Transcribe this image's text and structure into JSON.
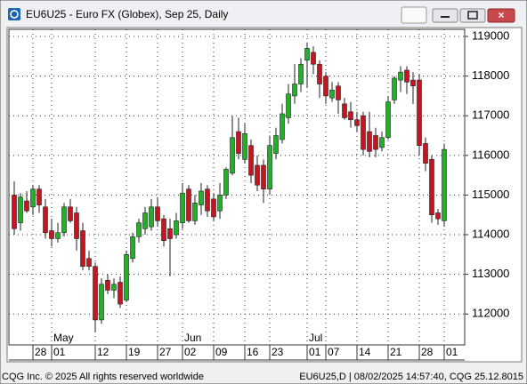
{
  "chart_data": {
    "type": "candlestick",
    "window_title": "EU6U25 - Euro FX (Globex), Sep 25, Daily",
    "footer_left": "CQG Inc. © 2025 All rights reserved worldwide",
    "footer_right": "EU6U25,D | 08/02/2025 14:57:40, CQG 25.12.8015",
    "categories": [
      null,
      null,
      null,
      "28",
      null,
      null,
      "01",
      null,
      null,
      null,
      null,
      null,
      null,
      "12",
      null,
      null,
      null,
      null,
      "19",
      null,
      null,
      null,
      null,
      "27",
      null,
      null,
      null,
      "02",
      null,
      null,
      null,
      null,
      "09",
      null,
      null,
      null,
      null,
      "16",
      null,
      null,
      null,
      "23",
      null,
      null,
      null,
      null,
      null,
      "01",
      null,
      null,
      "07",
      null,
      null,
      null,
      null,
      "14",
      null,
      null,
      null,
      null,
      "21",
      null,
      null,
      null,
      null,
      "28",
      null,
      null,
      null,
      "01"
    ],
    "months": [
      null,
      null,
      null,
      null,
      null,
      null,
      "May",
      null,
      null,
      null,
      null,
      null,
      null,
      null,
      null,
      null,
      null,
      null,
      null,
      null,
      null,
      null,
      null,
      null,
      null,
      null,
      null,
      "Jun",
      null,
      null,
      null,
      null,
      null,
      null,
      null,
      null,
      null,
      null,
      null,
      null,
      null,
      null,
      null,
      null,
      null,
      null,
      null,
      "Jul",
      null,
      null,
      null,
      null,
      null,
      null,
      null,
      null,
      null,
      null,
      null,
      null,
      null,
      null,
      null,
      null,
      null,
      null,
      null,
      null,
      null,
      null
    ],
    "open": [
      115000,
      114300,
      114850,
      114700,
      115150,
      114700,
      114100,
      113900,
      114050,
      114700,
      114550,
      114100,
      113400,
      113200,
      111850,
      112850,
      112600,
      112800,
      112350,
      113400,
      113950,
      114150,
      114200,
      114700,
      114400,
      114150,
      114000,
      114300,
      115150,
      114350,
      114750,
      115150,
      114900,
      114600,
      115000,
      115550,
      116600,
      115900,
      116250,
      115750,
      115750,
      115150,
      116050,
      116400,
      116950,
      117500,
      117800,
      118400,
      118600,
      118300,
      118000,
      117450,
      117750,
      117300,
      117100,
      116900,
      117000,
      116600,
      116500,
      116200,
      116450,
      117400,
      117900,
      118150,
      117900,
      117900,
      116300,
      115900,
      114550,
      114350
    ],
    "high": [
      115350,
      115050,
      115100,
      115250,
      115250,
      114900,
      114400,
      114300,
      114800,
      114900,
      114700,
      114300,
      113600,
      113300,
      112900,
      113000,
      112900,
      112950,
      113600,
      114050,
      114400,
      114700,
      114900,
      114950,
      114500,
      114400,
      114550,
      115300,
      115250,
      115000,
      115300,
      115250,
      115050,
      115300,
      115700,
      117000,
      116950,
      116800,
      116400,
      116000,
      115900,
      116500,
      116700,
      117300,
      117800,
      118300,
      118450,
      118850,
      118750,
      118400,
      118100,
      117850,
      117850,
      117450,
      117350,
      117100,
      117100,
      117100,
      116700,
      116600,
      117500,
      118000,
      118250,
      118250,
      118100,
      118050,
      116450,
      116000,
      114650,
      116300
    ],
    "low": [
      114000,
      114100,
      114550,
      114500,
      114550,
      113900,
      113700,
      113800,
      113950,
      114300,
      113600,
      113100,
      113100,
      111550,
      111750,
      112500,
      112400,
      112150,
      112300,
      113300,
      113800,
      114000,
      114100,
      114200,
      113700,
      112950,
      113900,
      114150,
      114300,
      114250,
      114500,
      114450,
      114350,
      114400,
      114900,
      115500,
      115900,
      115800,
      115300,
      115100,
      114800,
      115000,
      115900,
      116300,
      116800,
      117300,
      117600,
      117700,
      118050,
      117450,
      117300,
      117350,
      117050,
      116900,
      116700,
      116600,
      116000,
      115950,
      115950,
      116100,
      116400,
      117300,
      117600,
      117550,
      117300,
      116000,
      115600,
      114300,
      114250,
      114200
    ],
    "close": [
      114150,
      114950,
      114600,
      115150,
      114750,
      114050,
      113900,
      114050,
      114700,
      114350,
      113900,
      113200,
      113200,
      111850,
      112750,
      112600,
      112750,
      112250,
      113500,
      113950,
      114300,
      114550,
      114700,
      114350,
      113850,
      113900,
      114350,
      115050,
      114350,
      114800,
      115100,
      114600,
      114450,
      115000,
      115650,
      116450,
      116050,
      116550,
      115500,
      115250,
      115150,
      116250,
      116500,
      117050,
      117550,
      117800,
      118300,
      118700,
      118300,
      117800,
      117500,
      117650,
      117400,
      116950,
      116900,
      116750,
      116150,
      116100,
      116150,
      116450,
      117350,
      117950,
      118100,
      117850,
      117750,
      116250,
      115800,
      114500,
      114400,
      116150
    ],
    "up_color": "#22b02a",
    "down_color": "#c8141e",
    "ylim": [
      111220,
      119180
    ],
    "yticks": [
      112000,
      113000,
      114000,
      115000,
      116000,
      117000,
      118000,
      119000
    ],
    "grid": true
  }
}
